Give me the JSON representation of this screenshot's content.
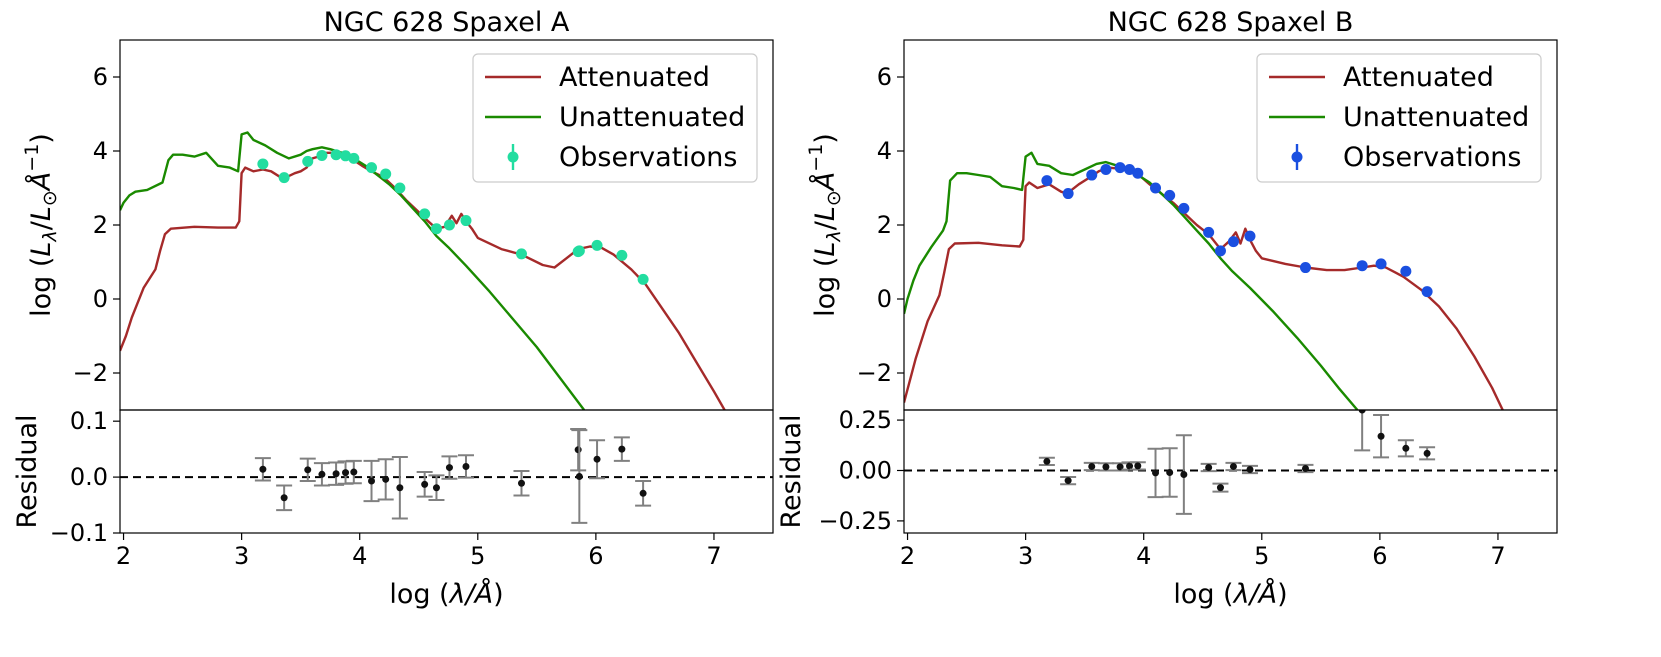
{
  "chart_data": [
    {
      "type": "line",
      "title": "NGC 628 Spaxel A",
      "xlabel": "log (λ/Å)",
      "ylabel": "log (L_λ/L_⊙Å^−1)",
      "xlim": [
        1.97,
        7.5
      ],
      "ylim": [
        -3.0,
        7.0
      ],
      "xticks": [
        2,
        3,
        4,
        5,
        6,
        7
      ],
      "yticks": [
        -2,
        0,
        2,
        4,
        6
      ],
      "legend_position": "top-right",
      "obs_color": "#22dda0",
      "series": [
        {
          "name": "Attenuated",
          "color": "#a52a2a",
          "points": [
            [
              1.97,
              -1.4
            ],
            [
              2.02,
              -1.0
            ],
            [
              2.07,
              -0.5
            ],
            [
              2.12,
              -0.1
            ],
            [
              2.17,
              0.3
            ],
            [
              2.22,
              0.55
            ],
            [
              2.27,
              0.8
            ],
            [
              2.31,
              1.3
            ],
            [
              2.35,
              1.75
            ],
            [
              2.4,
              1.9
            ],
            [
              2.6,
              1.95
            ],
            [
              2.8,
              1.93
            ],
            [
              2.95,
              1.93
            ],
            [
              2.98,
              2.1
            ],
            [
              3.0,
              3.4
            ],
            [
              3.03,
              3.55
            ],
            [
              3.1,
              3.45
            ],
            [
              3.18,
              3.5
            ],
            [
              3.25,
              3.45
            ],
            [
              3.35,
              3.25
            ],
            [
              3.45,
              3.4
            ],
            [
              3.5,
              3.45
            ],
            [
              3.55,
              3.55
            ],
            [
              3.6,
              3.8
            ],
            [
              3.65,
              3.85
            ],
            [
              3.72,
              3.95
            ],
            [
              3.8,
              3.95
            ],
            [
              3.88,
              3.88
            ],
            [
              3.95,
              3.75
            ],
            [
              4.02,
              3.6
            ],
            [
              4.1,
              3.45
            ],
            [
              4.2,
              3.3
            ],
            [
              4.3,
              3.0
            ],
            [
              4.4,
              2.65
            ],
            [
              4.5,
              2.35
            ],
            [
              4.58,
              2.1
            ],
            [
              4.65,
              1.9
            ],
            [
              4.72,
              1.95
            ],
            [
              4.78,
              2.25
            ],
            [
              4.82,
              2.05
            ],
            [
              4.86,
              2.3
            ],
            [
              4.9,
              2.1
            ],
            [
              4.95,
              1.9
            ],
            [
              5.0,
              1.65
            ],
            [
              5.2,
              1.35
            ],
            [
              5.37,
              1.2
            ],
            [
              5.55,
              0.92
            ],
            [
              5.65,
              0.85
            ],
            [
              5.75,
              1.1
            ],
            [
              5.85,
              1.35
            ],
            [
              5.95,
              1.42
            ],
            [
              6.05,
              1.38
            ],
            [
              6.15,
              1.2
            ],
            [
              6.3,
              0.8
            ],
            [
              6.42,
              0.4
            ],
            [
              6.55,
              -0.2
            ],
            [
              6.7,
              -0.9
            ],
            [
              6.85,
              -1.7
            ],
            [
              7.0,
              -2.5
            ],
            [
              7.09,
              -3.0
            ]
          ]
        },
        {
          "name": "Unattenuated",
          "color": "#1a8a00",
          "points": [
            [
              1.97,
              2.4
            ],
            [
              2.0,
              2.6
            ],
            [
              2.05,
              2.8
            ],
            [
              2.1,
              2.9
            ],
            [
              2.2,
              2.95
            ],
            [
              2.33,
              3.15
            ],
            [
              2.38,
              3.75
            ],
            [
              2.42,
              3.9
            ],
            [
              2.5,
              3.9
            ],
            [
              2.6,
              3.85
            ],
            [
              2.7,
              3.95
            ],
            [
              2.8,
              3.6
            ],
            [
              2.9,
              3.55
            ],
            [
              2.97,
              3.45
            ],
            [
              3.0,
              4.45
            ],
            [
              3.05,
              4.5
            ],
            [
              3.1,
              4.3
            ],
            [
              3.2,
              4.15
            ],
            [
              3.3,
              3.95
            ],
            [
              3.4,
              3.8
            ],
            [
              3.5,
              3.9
            ],
            [
              3.55,
              4.0
            ],
            [
              3.6,
              4.05
            ],
            [
              3.68,
              4.1
            ],
            [
              3.75,
              4.05
            ],
            [
              3.85,
              3.95
            ],
            [
              3.95,
              3.8
            ],
            [
              4.05,
              3.6
            ],
            [
              4.15,
              3.35
            ],
            [
              4.25,
              3.1
            ],
            [
              4.35,
              2.8
            ],
            [
              4.45,
              2.45
            ],
            [
              4.55,
              2.1
            ],
            [
              4.65,
              1.7
            ],
            [
              4.75,
              1.4
            ],
            [
              4.9,
              0.9
            ],
            [
              5.1,
              0.2
            ],
            [
              5.3,
              -0.55
            ],
            [
              5.5,
              -1.3
            ],
            [
              5.7,
              -2.15
            ],
            [
              5.9,
              -3.0
            ]
          ]
        }
      ],
      "observations": {
        "name": "Observations",
        "x": [
          3.18,
          3.36,
          3.56,
          3.68,
          3.8,
          3.88,
          3.95,
          4.1,
          4.22,
          4.34,
          4.55,
          4.65,
          4.76,
          4.9,
          5.37,
          5.85,
          5.86,
          6.01,
          6.22,
          6.4
        ],
        "y": [
          3.65,
          3.28,
          3.72,
          3.88,
          3.9,
          3.87,
          3.8,
          3.55,
          3.38,
          3.0,
          2.3,
          1.9,
          2.0,
          2.12,
          1.22,
          1.28,
          1.3,
          1.45,
          1.18,
          0.53
        ]
      },
      "residual": {
        "ylabel": "Residual",
        "ylim": [
          -0.1,
          0.12
        ],
        "yticks": [
          -0.1,
          0.0,
          0.1
        ],
        "ytick_labels": [
          "−0.1",
          "0.0",
          "0.1"
        ],
        "x": [
          3.18,
          3.36,
          3.56,
          3.68,
          3.8,
          3.88,
          3.95,
          4.1,
          4.22,
          4.34,
          4.55,
          4.65,
          4.76,
          4.9,
          5.37,
          5.85,
          5.86,
          6.01,
          6.22,
          6.4
        ],
        "y": [
          0.014,
          -0.037,
          0.013,
          0.005,
          0.006,
          0.008,
          0.009,
          -0.007,
          -0.004,
          -0.019,
          -0.013,
          -0.019,
          0.017,
          0.019,
          -0.011,
          0.049,
          0.001,
          0.032,
          0.05,
          -0.029
        ],
        "err": [
          0.02,
          0.022,
          0.02,
          0.02,
          0.02,
          0.02,
          0.02,
          0.036,
          0.036,
          0.055,
          0.022,
          0.022,
          0.02,
          0.02,
          0.022,
          0.037,
          0.083,
          0.034,
          0.021,
          0.022
        ]
      }
    },
    {
      "type": "line",
      "title": "NGC 628 Spaxel B",
      "xlabel": "log (λ/Å)",
      "ylabel": "log (L_λ/L_⊙Å^−1)",
      "xlim": [
        1.97,
        7.5
      ],
      "ylim": [
        -3.0,
        7.0
      ],
      "xticks": [
        2,
        3,
        4,
        5,
        6,
        7
      ],
      "yticks": [
        -2,
        0,
        2,
        4,
        6
      ],
      "legend_position": "top-right",
      "obs_color": "#1a4fe0",
      "series": [
        {
          "name": "Attenuated",
          "color": "#a52a2a",
          "points": [
            [
              1.97,
              -2.8
            ],
            [
              2.02,
              -2.2
            ],
            [
              2.07,
              -1.6
            ],
            [
              2.12,
              -1.1
            ],
            [
              2.17,
              -0.6
            ],
            [
              2.22,
              -0.25
            ],
            [
              2.27,
              0.1
            ],
            [
              2.31,
              0.7
            ],
            [
              2.35,
              1.35
            ],
            [
              2.4,
              1.5
            ],
            [
              2.6,
              1.52
            ],
            [
              2.8,
              1.45
            ],
            [
              2.95,
              1.42
            ],
            [
              2.98,
              1.6
            ],
            [
              3.0,
              3.05
            ],
            [
              3.03,
              3.15
            ],
            [
              3.1,
              3.0
            ],
            [
              3.2,
              3.1
            ],
            [
              3.3,
              2.9
            ],
            [
              3.35,
              2.85
            ],
            [
              3.45,
              3.1
            ],
            [
              3.55,
              3.3
            ],
            [
              3.62,
              3.45
            ],
            [
              3.7,
              3.55
            ],
            [
              3.8,
              3.52
            ],
            [
              3.88,
              3.45
            ],
            [
              3.95,
              3.38
            ],
            [
              4.05,
              3.1
            ],
            [
              4.15,
              2.85
            ],
            [
              4.25,
              2.6
            ],
            [
              4.35,
              2.3
            ],
            [
              4.45,
              2.0
            ],
            [
              4.55,
              1.75
            ],
            [
              4.65,
              1.35
            ],
            [
              4.72,
              1.55
            ],
            [
              4.78,
              1.8
            ],
            [
              4.82,
              1.5
            ],
            [
              4.86,
              1.9
            ],
            [
              4.9,
              1.6
            ],
            [
              4.95,
              1.3
            ],
            [
              5.0,
              1.1
            ],
            [
              5.2,
              0.95
            ],
            [
              5.37,
              0.85
            ],
            [
              5.55,
              0.78
            ],
            [
              5.7,
              0.78
            ],
            [
              5.85,
              0.85
            ],
            [
              5.95,
              0.9
            ],
            [
              6.05,
              0.85
            ],
            [
              6.2,
              0.6
            ],
            [
              6.35,
              0.25
            ],
            [
              6.5,
              -0.2
            ],
            [
              6.65,
              -0.8
            ],
            [
              6.8,
              -1.55
            ],
            [
              6.95,
              -2.4
            ],
            [
              7.04,
              -3.0
            ]
          ]
        },
        {
          "name": "Unattenuated",
          "color": "#1a8a00",
          "points": [
            [
              1.97,
              -0.4
            ],
            [
              2.0,
              0.0
            ],
            [
              2.05,
              0.5
            ],
            [
              2.1,
              0.9
            ],
            [
              2.2,
              1.4
            ],
            [
              2.3,
              1.85
            ],
            [
              2.33,
              2.1
            ],
            [
              2.36,
              3.2
            ],
            [
              2.42,
              3.4
            ],
            [
              2.5,
              3.4
            ],
            [
              2.6,
              3.35
            ],
            [
              2.7,
              3.3
            ],
            [
              2.8,
              3.05
            ],
            [
              2.9,
              3.0
            ],
            [
              2.97,
              2.95
            ],
            [
              3.0,
              3.85
            ],
            [
              3.05,
              3.95
            ],
            [
              3.1,
              3.65
            ],
            [
              3.2,
              3.6
            ],
            [
              3.3,
              3.4
            ],
            [
              3.4,
              3.35
            ],
            [
              3.5,
              3.5
            ],
            [
              3.6,
              3.65
            ],
            [
              3.68,
              3.7
            ],
            [
              3.78,
              3.6
            ],
            [
              3.88,
              3.5
            ],
            [
              3.95,
              3.35
            ],
            [
              4.05,
              3.15
            ],
            [
              4.15,
              2.85
            ],
            [
              4.25,
              2.55
            ],
            [
              4.35,
              2.2
            ],
            [
              4.45,
              1.85
            ],
            [
              4.55,
              1.5
            ],
            [
              4.65,
              1.1
            ],
            [
              4.75,
              0.75
            ],
            [
              4.9,
              0.3
            ],
            [
              5.1,
              -0.35
            ],
            [
              5.3,
              -1.05
            ],
            [
              5.5,
              -1.8
            ],
            [
              5.65,
              -2.4
            ],
            [
              5.81,
              -3.0
            ]
          ]
        }
      ],
      "observations": {
        "name": "Observations",
        "x": [
          3.18,
          3.36,
          3.56,
          3.68,
          3.8,
          3.88,
          3.95,
          4.1,
          4.22,
          4.34,
          4.55,
          4.65,
          4.76,
          4.9,
          5.37,
          5.85,
          6.01,
          6.22,
          6.4
        ],
        "y": [
          3.2,
          2.85,
          3.35,
          3.5,
          3.55,
          3.5,
          3.4,
          3.0,
          2.8,
          2.45,
          1.8,
          1.3,
          1.55,
          1.7,
          0.85,
          0.9,
          0.95,
          0.75,
          0.2
        ]
      },
      "residual": {
        "ylabel": "Residual",
        "ylim": [
          -0.31,
          0.3
        ],
        "yticks": [
          -0.25,
          0.0,
          0.25
        ],
        "ytick_labels": [
          "−0.25",
          "0.00",
          "0.25"
        ],
        "x": [
          3.18,
          3.36,
          3.56,
          3.68,
          3.8,
          3.88,
          3.95,
          4.1,
          4.22,
          4.34,
          4.55,
          4.65,
          4.76,
          4.9,
          5.37,
          5.85,
          6.01,
          6.22,
          6.4
        ],
        "y": [
          0.045,
          -0.05,
          0.02,
          0.018,
          0.018,
          0.022,
          0.023,
          -0.012,
          -0.01,
          -0.02,
          0.015,
          -0.085,
          0.02,
          0.005,
          0.01,
          0.3,
          0.17,
          0.11,
          0.085
        ],
        "err": [
          0.018,
          0.018,
          0.018,
          0.018,
          0.018,
          0.018,
          0.018,
          0.12,
          0.12,
          0.195,
          0.018,
          0.02,
          0.018,
          0.018,
          0.018,
          0.2,
          0.105,
          0.04,
          0.03
        ]
      }
    }
  ]
}
